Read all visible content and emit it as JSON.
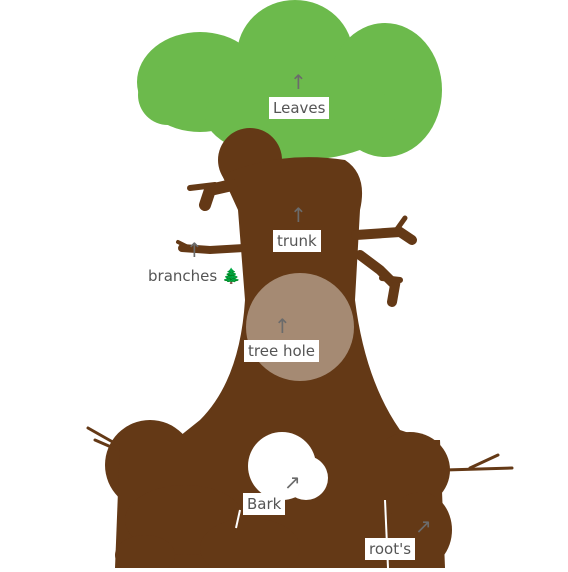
{
  "colors": {
    "canopy": "#6cba4c",
    "trunk": "#643916",
    "hole": "#a58a73",
    "bark_spot": "#ffffff",
    "label_text": "#555555",
    "arrow": "#6b6b6b"
  },
  "labels": {
    "leaves": "Leaves",
    "trunk": "trunk",
    "branches": "branches",
    "tree_hole": "tree hole",
    "bark": "Bark",
    "roots": "root's"
  },
  "icons": {
    "branches_emoji": "🌲",
    "arrow_up": "↑",
    "arrow_diag": "↗"
  }
}
